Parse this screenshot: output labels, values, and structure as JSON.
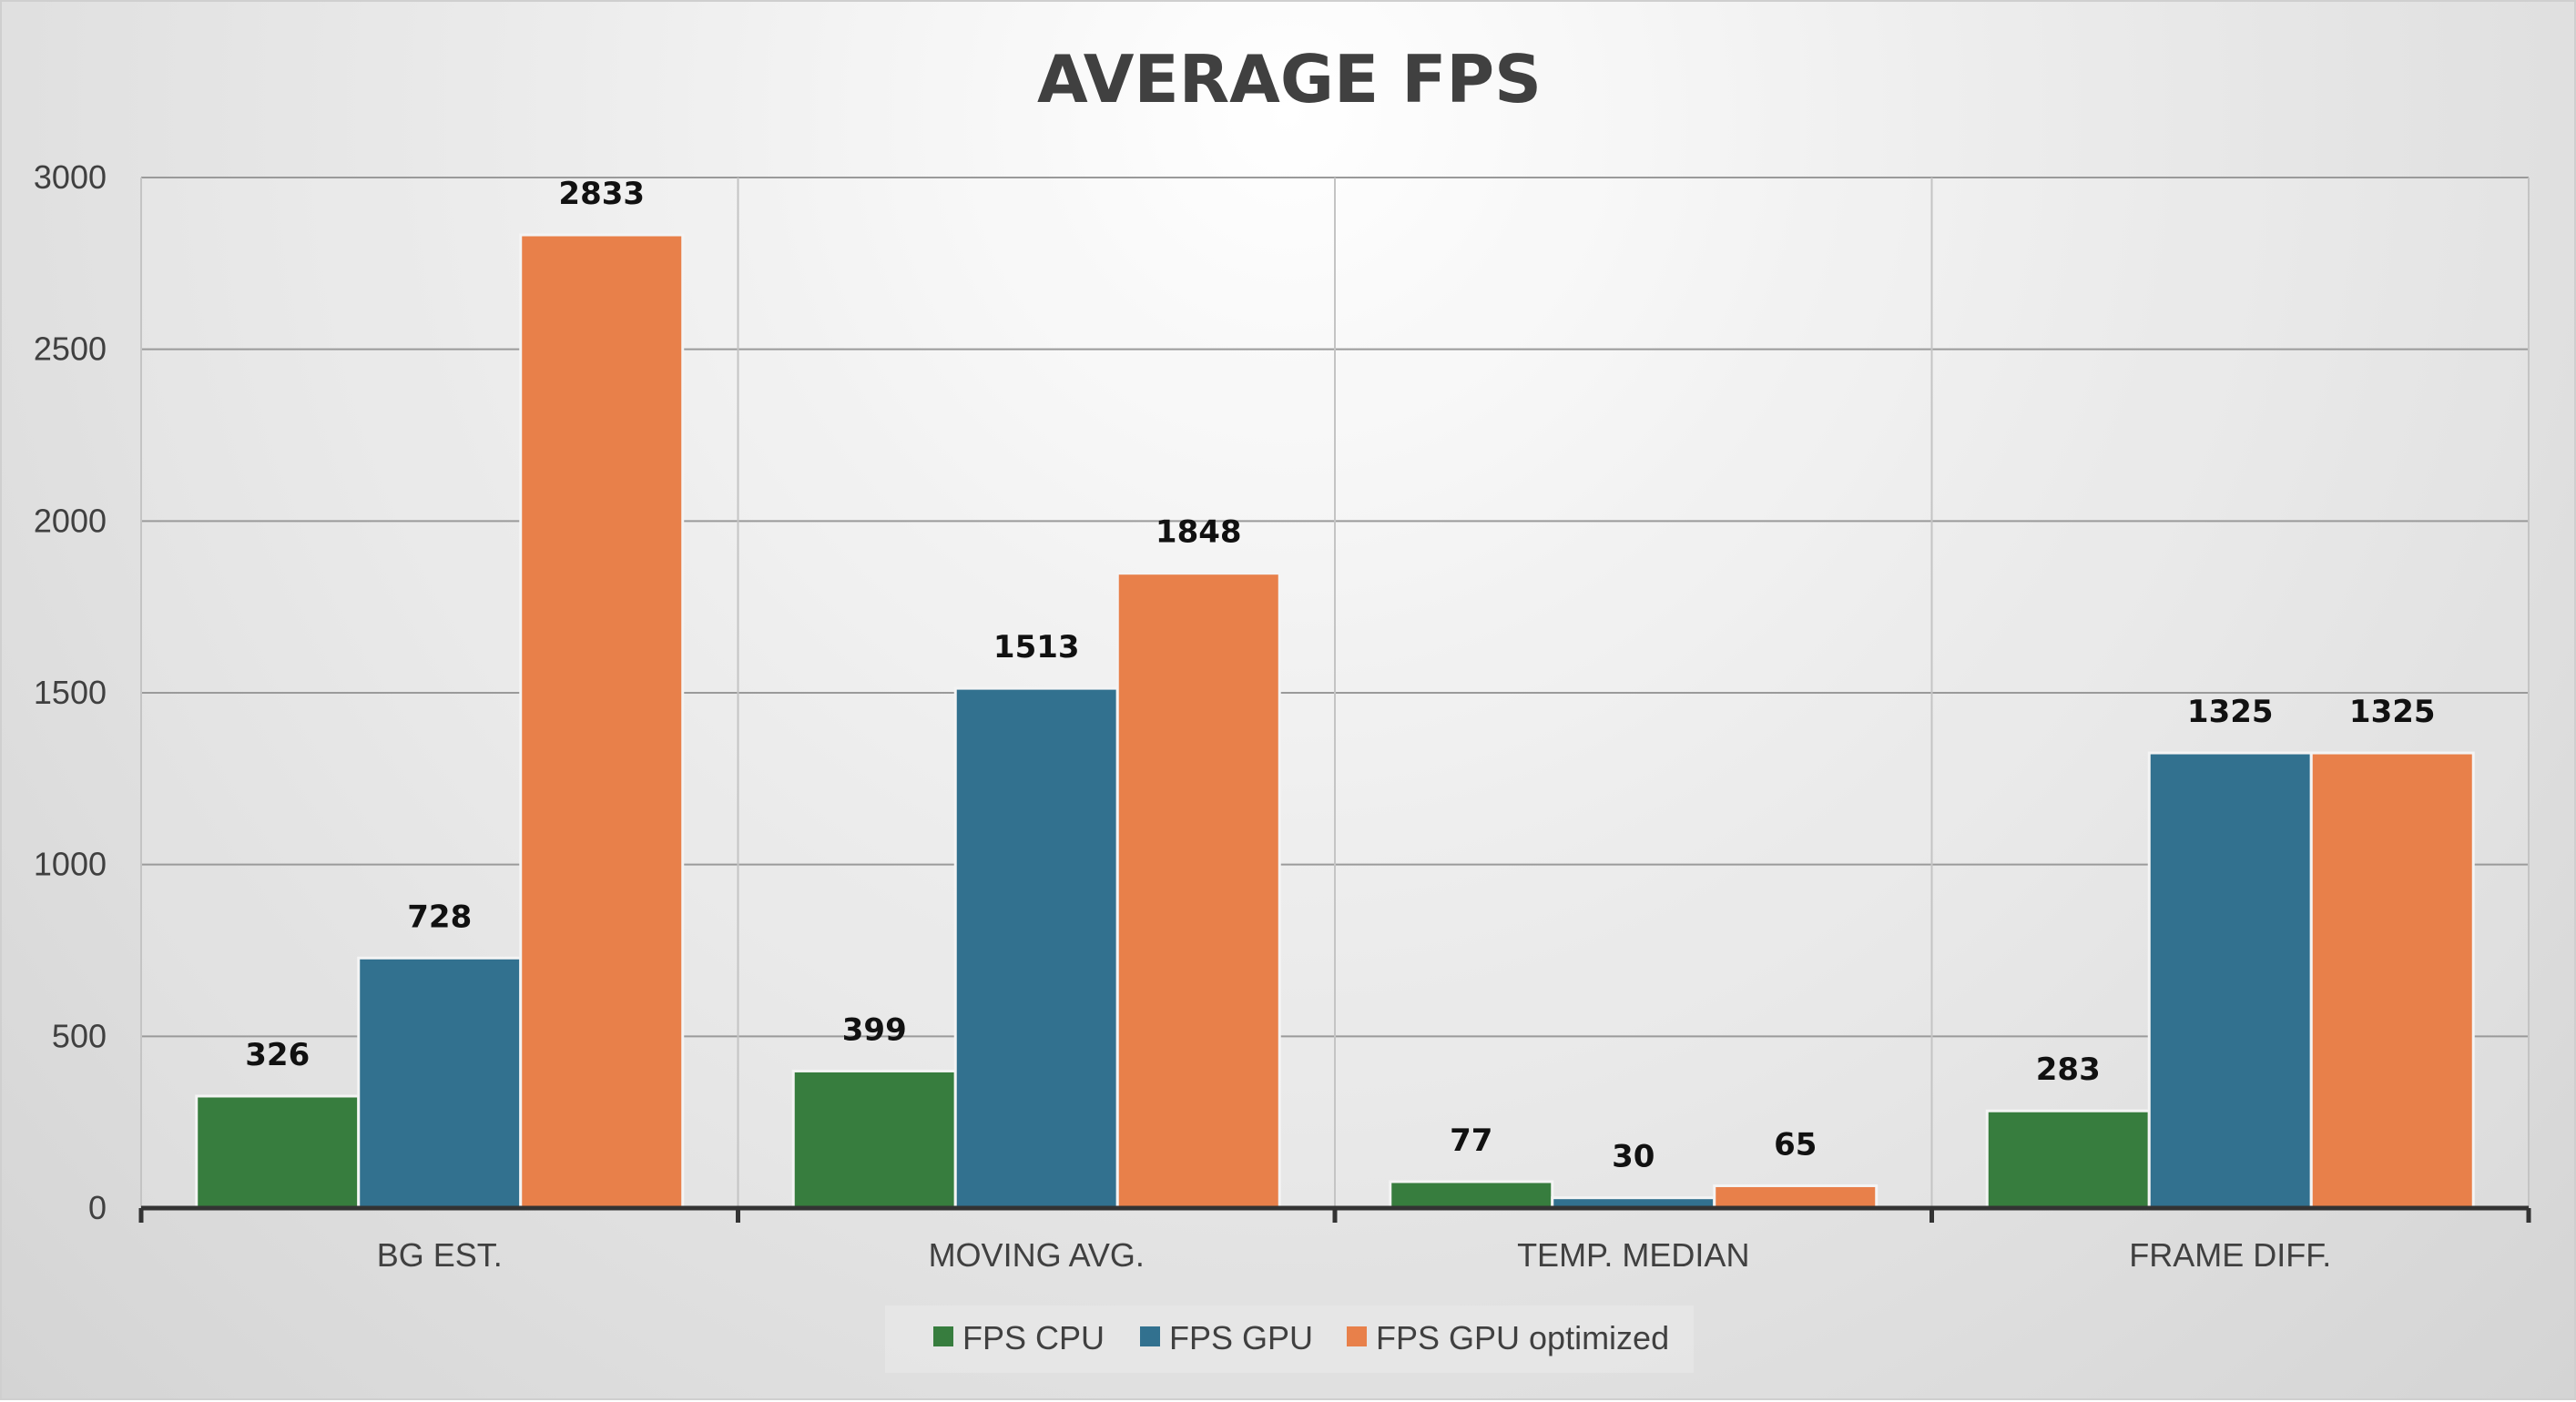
{
  "chart_data": {
    "type": "bar",
    "title": "AVERAGE FPS",
    "categories": [
      "BG EST.",
      "MOVING AVG.",
      "TEMP. MEDIAN",
      "FRAME DIFF."
    ],
    "series": [
      {
        "name": "FPS CPU",
        "color": "#377d3e",
        "values": [
          326,
          399,
          77,
          283
        ]
      },
      {
        "name": "FPS GPU",
        "color": "#32718f",
        "values": [
          728,
          1513,
          30,
          1325
        ]
      },
      {
        "name": "FPS GPU optimized",
        "color": "#e8804a",
        "values": [
          2833,
          1848,
          65,
          1325
        ]
      }
    ],
    "ylim": [
      0,
      3000
    ],
    "yticks": [
      0,
      500,
      1000,
      1500,
      2000,
      2500,
      3000
    ],
    "grid": true,
    "legend": "bottom",
    "data_labels": true
  }
}
